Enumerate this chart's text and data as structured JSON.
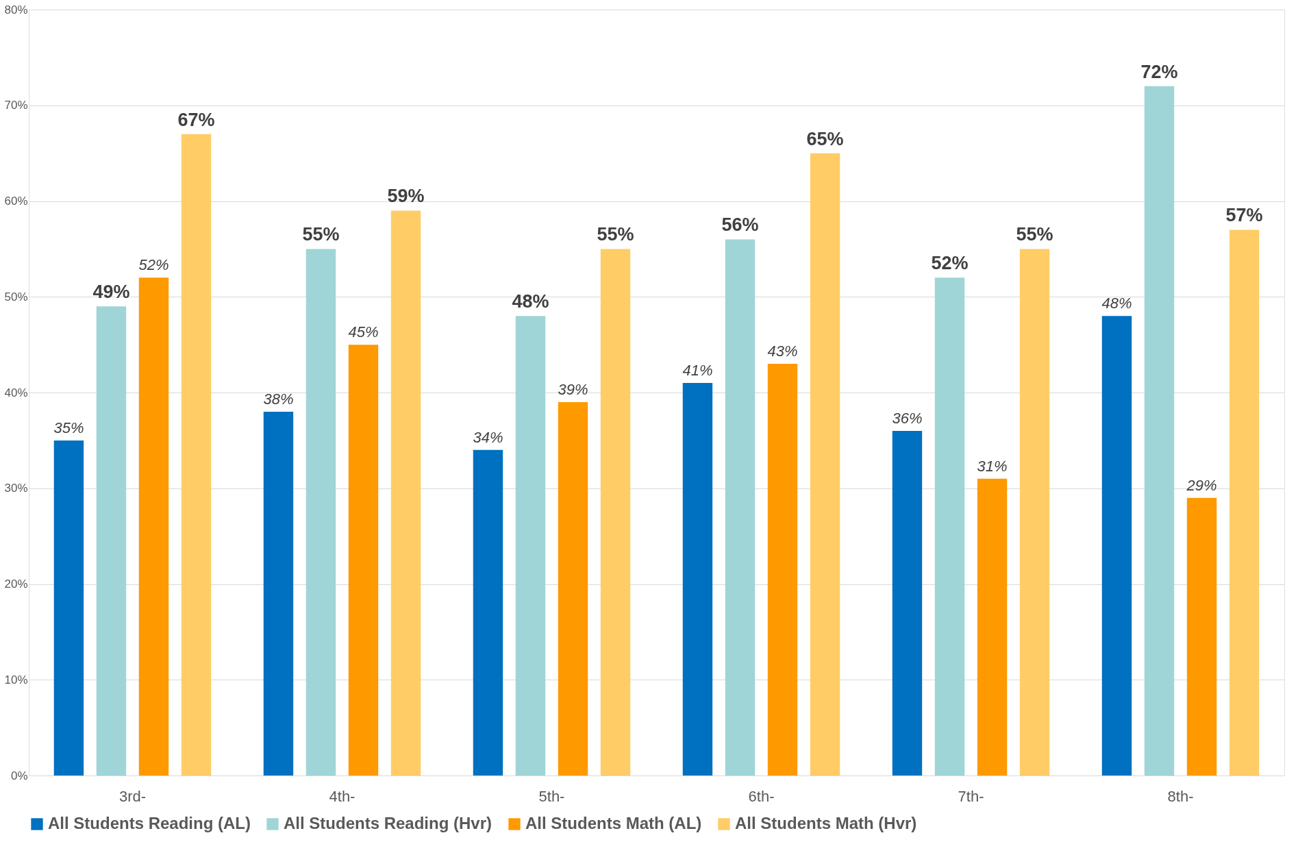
{
  "chart_data": {
    "type": "bar",
    "categories": [
      "3rd-",
      "4th-",
      "5th-",
      "6th-",
      "7th-",
      "8th-"
    ],
    "series": [
      {
        "name": "All Students Reading (AL)",
        "color": "#0070c0",
        "values": [
          35,
          38,
          34,
          41,
          36,
          48
        ],
        "value_labels": [
          "35%",
          "38%",
          "34%",
          "41%",
          "36%",
          "48%"
        ]
      },
      {
        "name": "All Students Reading (Hvr)",
        "color": "#9fd5d7",
        "values": [
          49,
          55,
          48,
          56,
          52,
          72
        ],
        "value_labels": [
          "49%",
          "55%",
          "48%",
          "56%",
          "52%",
          "72%"
        ]
      },
      {
        "name": "All Students Math (AL)",
        "color": "#ff9900",
        "values": [
          52,
          45,
          39,
          43,
          31,
          29
        ],
        "value_labels": [
          "52%",
          "45%",
          "39%",
          "43%",
          "31%",
          "29%"
        ]
      },
      {
        "name": "All Students Math (Hvr)",
        "color": "#ffcc66",
        "values": [
          67,
          59,
          55,
          65,
          55,
          57
        ],
        "value_labels": [
          "67%",
          "59%",
          "55%",
          "65%",
          "55%",
          "57%"
        ]
      }
    ],
    "ylim": [
      0,
      80
    ],
    "yticks": [
      {
        "value": 0,
        "label": "0%"
      },
      {
        "value": 10,
        "label": "10%"
      },
      {
        "value": 20,
        "label": "20%"
      },
      {
        "value": 30,
        "label": "30%"
      },
      {
        "value": 40,
        "label": "40%"
      },
      {
        "value": 50,
        "label": "50%"
      },
      {
        "value": 60,
        "label": "60%"
      },
      {
        "value": 70,
        "label": "70%"
      },
      {
        "value": 80,
        "label": "80%"
      }
    ],
    "grid": "y",
    "legend": "bottom"
  }
}
